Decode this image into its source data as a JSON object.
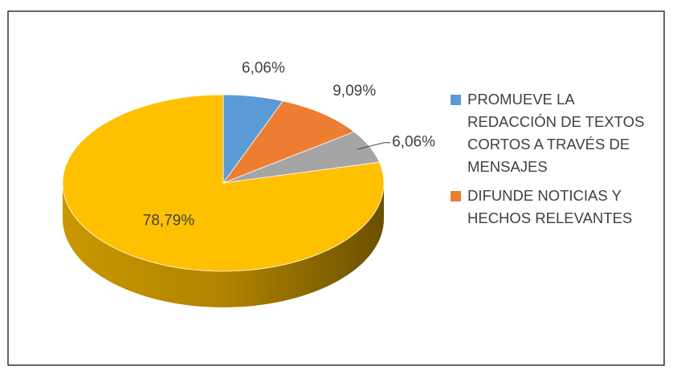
{
  "chart_data": {
    "type": "pie",
    "categories": [
      "PROMUEVE LA REDACCIÓN DE TEXTOS CORTOS A TRAVÉS DE MENSAJES",
      "DIFUNDE NOTICIAS Y HECHOS RELEVANTES",
      null,
      null
    ],
    "values": [
      6.06,
      9.09,
      6.06,
      78.79
    ],
    "value_labels": [
      "6,06%",
      "9,09%",
      "6,06%",
      "78,79%"
    ],
    "colors": [
      "#5b9bd5",
      "#ed7d31",
      "#a5a5a5",
      "#ffc000"
    ],
    "legend": "right"
  }
}
